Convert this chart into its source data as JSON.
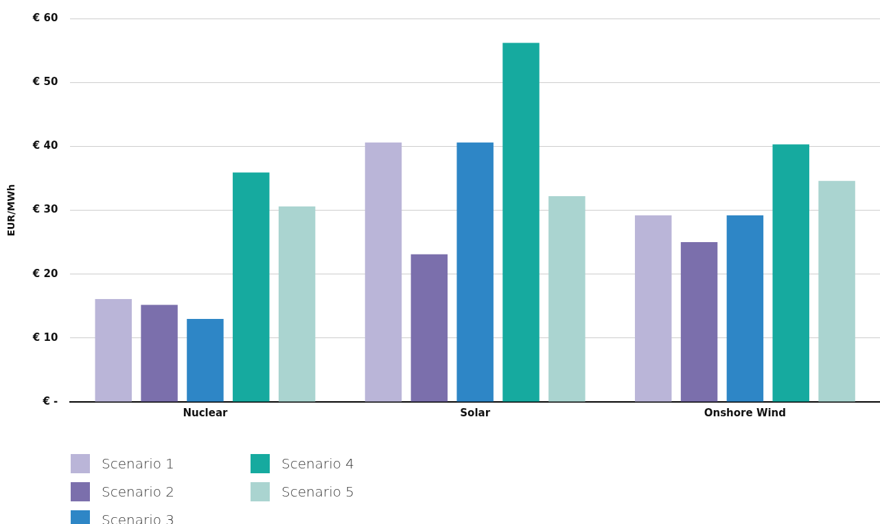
{
  "chart_data": {
    "type": "bar",
    "ylabel": "EUR/MWh",
    "categories": [
      "Nuclear",
      "Solar",
      "Onshore Wind"
    ],
    "series": [
      {
        "name": "Scenario 1",
        "color": "#bab5d8",
        "values": [
          16.1,
          40.6,
          29.2
        ]
      },
      {
        "name": "Scenario 2",
        "color": "#7b6fac",
        "values": [
          15.2,
          23.1,
          25.0
        ]
      },
      {
        "name": "Scenario 3",
        "color": "#2e86c6",
        "values": [
          13.0,
          40.6,
          29.2
        ]
      },
      {
        "name": "Scenario 4",
        "color": "#16aa9f",
        "values": [
          35.9,
          56.2,
          40.3
        ]
      },
      {
        "name": "Scenario 5",
        "color": "#aad4d0",
        "values": [
          30.6,
          32.2,
          34.6
        ]
      }
    ],
    "ylim": [
      0,
      60
    ],
    "yticks": [
      {
        "value": 0,
        "label": "€ -"
      },
      {
        "value": 10,
        "label": "€ 10"
      },
      {
        "value": 20,
        "label": "€ 20"
      },
      {
        "value": 30,
        "label": "€ 30"
      },
      {
        "value": 40,
        "label": "€ 40"
      },
      {
        "value": 50,
        "label": "€ 50"
      },
      {
        "value": 60,
        "label": "€ 60"
      }
    ],
    "grid": "y",
    "legend": "bottom left"
  }
}
